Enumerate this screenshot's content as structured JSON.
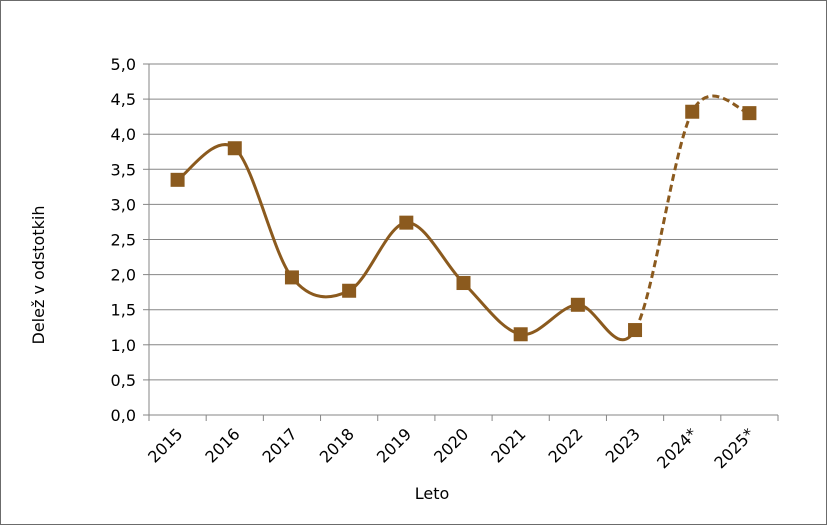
{
  "chart_data": {
    "type": "line",
    "title": "",
    "xlabel": "Leto",
    "ylabel": "Delež v odstotkih",
    "categories": [
      "2015",
      "2016",
      "2017",
      "2018",
      "2019",
      "2020",
      "2021",
      "2022",
      "2023",
      "2024*",
      "2025*"
    ],
    "ylim": [
      0,
      5
    ],
    "yticks": [
      "0,0",
      "0,5",
      "1,0",
      "1,5",
      "2,0",
      "2,5",
      "3,0",
      "3,5",
      "4,0",
      "4,5",
      "5,0"
    ],
    "grid": "horizontal",
    "legend": "none",
    "series": [
      {
        "values": [
          3.35,
          3.8,
          1.96,
          1.77,
          2.74,
          1.88,
          1.15,
          1.57,
          1.21,
          4.32,
          4.3
        ],
        "color": "#8B5A1E",
        "marker": "square",
        "smooth": true,
        "forecast_from_index": 8
      }
    ]
  }
}
